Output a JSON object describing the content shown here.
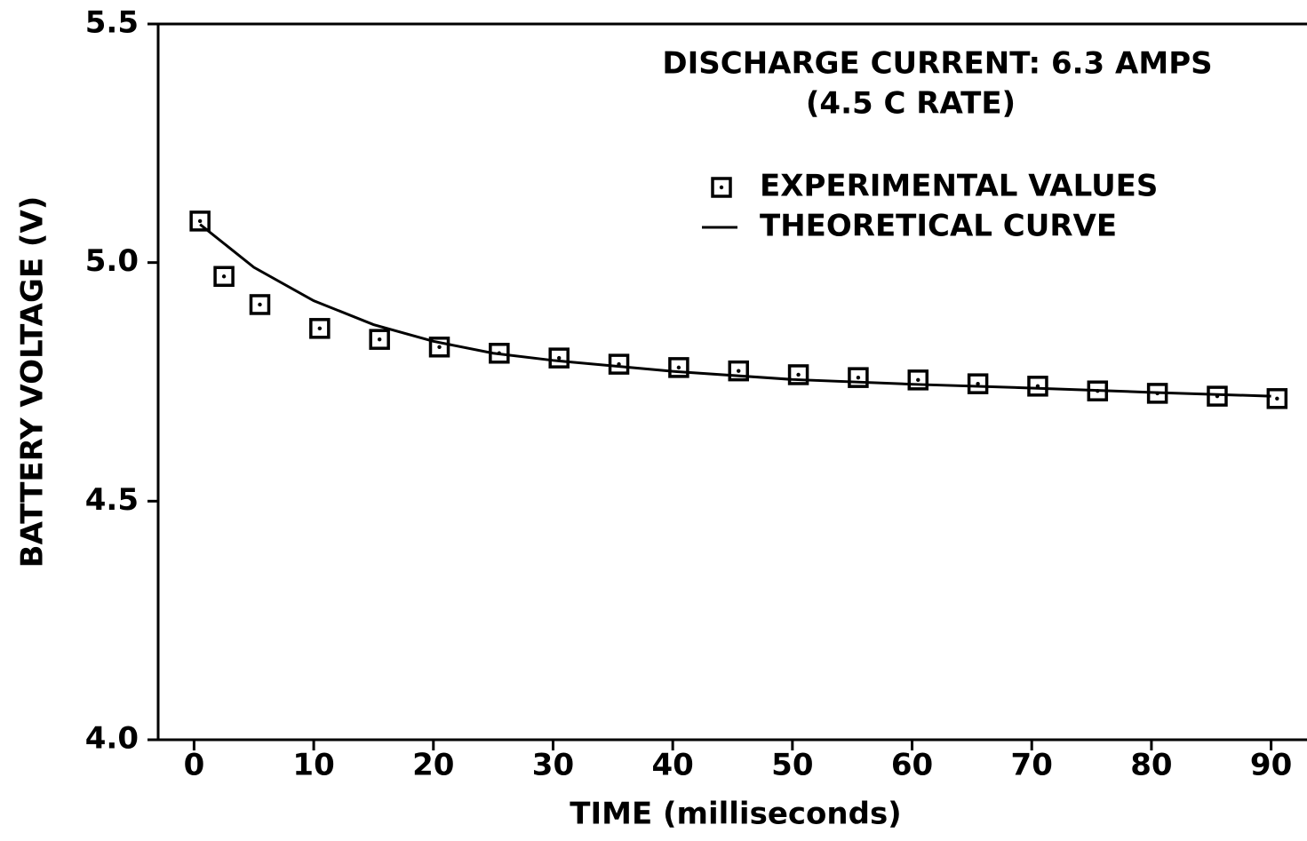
{
  "chart_data": {
    "type": "line",
    "annotations": [
      "DISCHARGE CURRENT: 6.3 AMPS",
      "(4.5 C RATE)"
    ],
    "x_label": "TIME (milliseconds)",
    "y_label": "BATTERY VOLTAGE (V)",
    "xlim": [
      -3,
      93
    ],
    "ylim": [
      4.0,
      5.5
    ],
    "xticks": [
      0,
      10,
      20,
      30,
      40,
      50,
      60,
      70,
      80,
      90
    ],
    "yticks": [
      {
        "value": 4.0,
        "label": "4.0"
      },
      {
        "value": 4.5,
        "label": "4.5"
      },
      {
        "value": 5.0,
        "label": "5.0"
      },
      5.5
    ],
    "series": [
      {
        "name": "EXPERIMENTAL VALUES",
        "color": "#000000",
        "marker": "square",
        "x": [
          0.5,
          2.5,
          5.5,
          10.5,
          15.5,
          20.5,
          25.5,
          30.5,
          35.5,
          40.5,
          45.5,
          50.5,
          55.5,
          60.5,
          65.5,
          70.5,
          75.5,
          80.5,
          85.5,
          90.5
        ],
        "values": [
          5.087,
          4.971,
          4.912,
          4.862,
          4.839,
          4.823,
          4.81,
          4.8,
          4.787,
          4.78,
          4.773,
          4.765,
          4.759,
          4.754,
          4.746,
          4.741,
          4.731,
          4.726,
          4.72,
          4.715
        ]
      },
      {
        "name": "THEORETICAL CURVE",
        "color": "#000000",
        "marker": "none",
        "x": [
          0.5,
          5,
          10,
          15,
          20,
          25,
          30,
          40,
          50,
          60,
          70,
          80,
          90
        ],
        "values": [
          5.08,
          4.99,
          4.92,
          4.87,
          4.835,
          4.81,
          4.795,
          4.772,
          4.755,
          4.745,
          4.737,
          4.728,
          4.72
        ]
      }
    ]
  }
}
